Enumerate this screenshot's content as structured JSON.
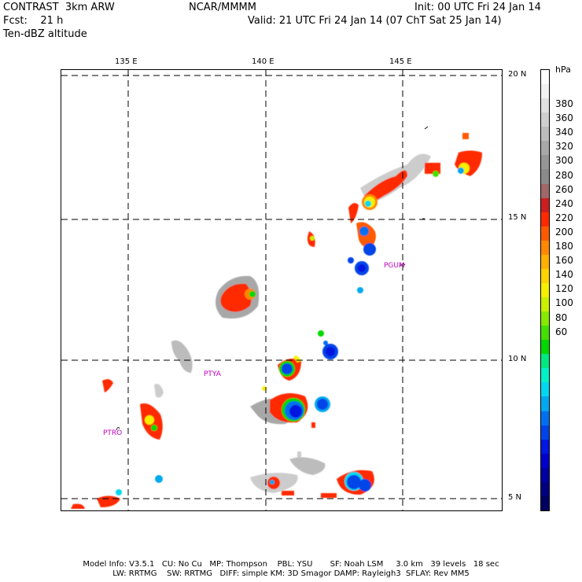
{
  "header": {
    "line1_left": "CONTRAST  3km ARW",
    "line1_center": "NCAR/MMMM",
    "line1_right": "Init: 00 UTC Fri 24 Jan 14",
    "line2_left": "Fcst:    21 h",
    "line2_right": "Valid: 21 UTC Fri 24 Jan 14 (07 ChT Sat 25 Jan 14)",
    "line3_left": "Ten-dBZ altitude"
  },
  "map": {
    "lon_labels": [
      "135 E",
      "140 E",
      "145 E"
    ],
    "lat_labels": [
      "20 N",
      "15 N",
      "10 N",
      "5 N"
    ],
    "stations": [
      "PGUM",
      "PTYA",
      "PTRO"
    ]
  },
  "colorbar": {
    "unit": "hPa",
    "labels": [
      "380",
      "360",
      "340",
      "320",
      "300",
      "280",
      "260",
      "240",
      "220",
      "200",
      "180",
      "160",
      "140",
      "120",
      "100",
      "80",
      "60"
    ],
    "colors": [
      "#ffffff",
      "#f2f2f2",
      "#e2e2e2",
      "#cfcfcf",
      "#bcbcbc",
      "#a8a8a8",
      "#969696",
      "#8a8a8a",
      "#a06868",
      "#cc2020",
      "#ff2a00",
      "#ff5a00",
      "#ff8800",
      "#ffb000",
      "#ffd400",
      "#f4f000",
      "#c8f000",
      "#88e800",
      "#44e000",
      "#00d800",
      "#00e880",
      "#00f0c8",
      "#00d8f0",
      "#00a8f0",
      "#0070f0",
      "#0044e8",
      "#0018e0",
      "#0000c8",
      "#0000a0",
      "#000080",
      "#000060"
    ]
  },
  "footer": {
    "line1": "Model Info: V3.5.1   CU: No Cu   MP: Thompson    PBL: YSU       SF: Noah LSM     3.0 km   39 levels   18 sec",
    "line2": "LW: RRTMG    SW: RRTMG   DIFF: simple KM: 3D Smagor DAMP: Rayleigh3  SFLAY: Rev MM5"
  }
}
